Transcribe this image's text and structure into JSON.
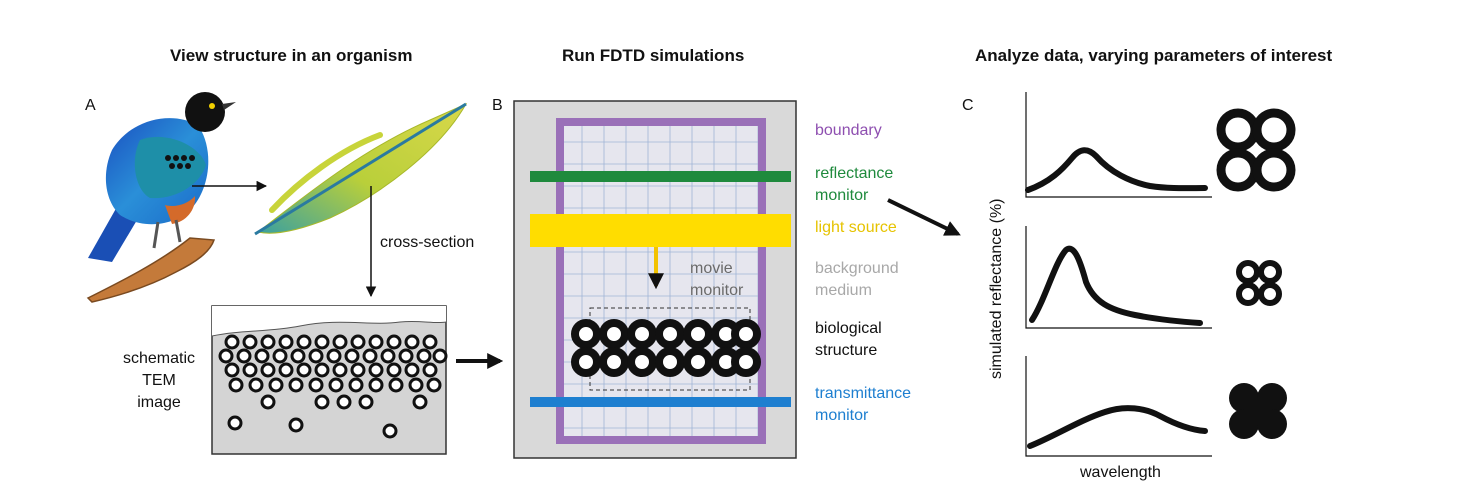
{
  "headings": {
    "organism": "View structure in an organism",
    "simulation": "Run FDTD simulations",
    "analysis": "Analyze data, varying parameters of interest"
  },
  "panels": {
    "a": "A",
    "b": "B",
    "c": "C"
  },
  "panel_a": {
    "cross_section_label": "cross-section",
    "tem_label": [
      "schematic",
      "TEM",
      "image"
    ]
  },
  "panel_b": {
    "legend": [
      {
        "lines": [
          "boundary"
        ],
        "color": "#8e4fb0"
      },
      {
        "lines": [
          "reflectance",
          "monitor"
        ],
        "color": "#1f8a3d"
      },
      {
        "lines": [
          "light source"
        ],
        "color": "#e6c300"
      },
      {
        "lines": [
          "background",
          "medium"
        ],
        "color": "#a8a8a8"
      },
      {
        "lines": [
          "biological",
          "structure"
        ],
        "color": "#111111"
      },
      {
        "lines": [
          "transmittance",
          "monitor"
        ],
        "color": "#1e7fd0"
      }
    ],
    "movie_monitor_label": [
      "movie",
      "monitor"
    ]
  },
  "panel_c": {
    "y_label": "simulated reflectance (%)",
    "x_label": "wavelength"
  },
  "colors": {
    "bird_body": "#1f6fd0",
    "feather": "#c8d43a",
    "tem_bg": "#d4d4d4",
    "sim_bg": "#d9d9d9"
  }
}
